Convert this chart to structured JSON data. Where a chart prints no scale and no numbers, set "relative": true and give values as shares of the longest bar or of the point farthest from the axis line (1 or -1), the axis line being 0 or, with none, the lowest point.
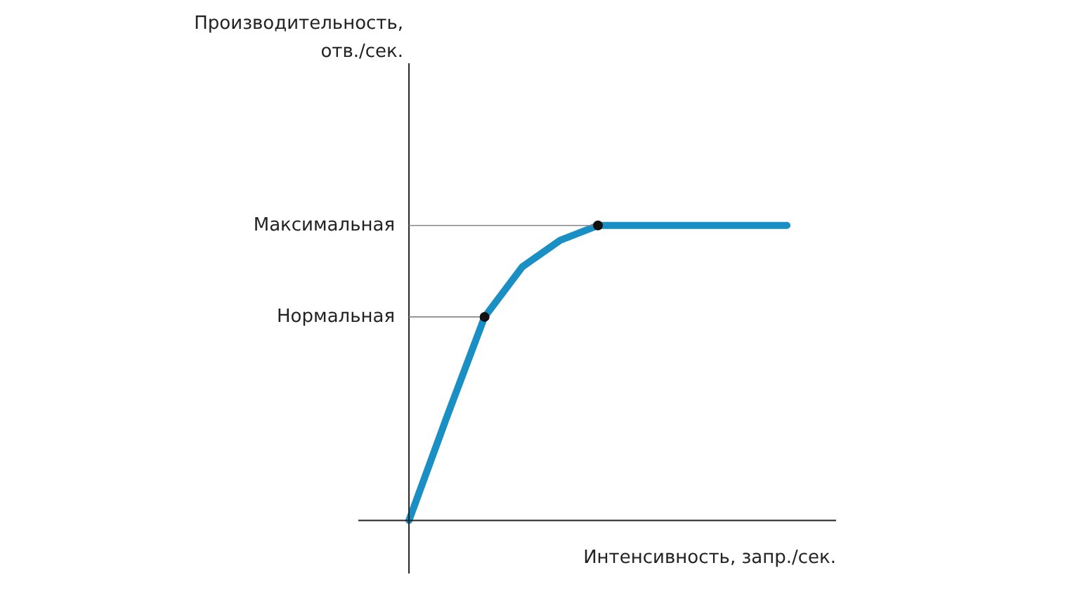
{
  "chart_data": {
    "type": "line",
    "relative": true,
    "annotations": [
      "Производительность, отв./сек."
    ],
    "xlabel": "Интенсивность, запр./сек.",
    "categories": [
      null,
      null,
      null,
      null,
      null,
      null,
      null,
      null,
      null,
      null,
      null
    ],
    "series": [
      {
        "color": "#1a8fc4",
        "values": [
          0,
          0.35,
          0.69,
          0.86,
          0.95,
          1,
          1,
          1,
          1,
          1,
          1
        ]
      }
    ],
    "ref_lines": [
      {
        "axis": "y",
        "value": 1,
        "label": "Максимальная",
        "color": "#888888"
      },
      {
        "axis": "y",
        "value": 0.69,
        "label": "Нормальная",
        "color": "#888888"
      }
    ],
    "legend": false,
    "tick_labels": false
  }
}
